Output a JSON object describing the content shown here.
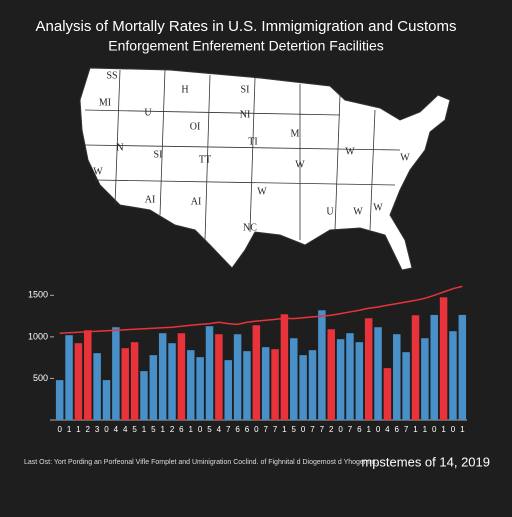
{
  "chart_data": {
    "type": "bar",
    "title": "Analysis of Mortally Rates in U.S. Immigmigration and Customs",
    "subtitle": "Enforgement Enferement Detertion Facilities",
    "map_labels": [
      "SS",
      "H",
      "SI",
      "MI",
      "U",
      "OI",
      "NI",
      "N",
      "SI",
      "TT",
      "TI",
      "W",
      "AI",
      "AI",
      "W",
      "NC",
      "M",
      "W",
      "W",
      "U",
      "W",
      "W",
      "W"
    ],
    "categories": [
      "0",
      "1",
      "1",
      "2",
      "3",
      "0",
      "4",
      "4",
      "5",
      "1",
      "5",
      "1",
      "2",
      "6",
      "1",
      "0",
      "5",
      "4",
      "7",
      "6",
      "6",
      "0",
      "7",
      "7",
      "1",
      "5",
      "0",
      "7",
      "7",
      "2",
      "0",
      "7",
      "6",
      "1",
      "0",
      "4",
      "6",
      "7",
      "1",
      "1",
      "0",
      "1",
      "0",
      "1"
    ],
    "values": [
      480,
      1020,
      924,
      1080,
      804,
      480,
      1116,
      864,
      936,
      588,
      780,
      1044,
      924,
      1044,
      840,
      756,
      1128,
      1032,
      720,
      1032,
      828,
      1140,
      876,
      852,
      1272,
      984,
      780,
      840,
      1320,
      1092,
      972,
      1044,
      936,
      1224,
      1116,
      624,
      1032,
      816,
      1260,
      984,
      1264,
      1476,
      1068,
      1264
    ],
    "colors": [
      "#4a90c8",
      "#4a90c8",
      "#e8333a",
      "#e8333a",
      "#4a90c8",
      "#4a90c8",
      "#4a90c8",
      "#e8333a",
      "#e8333a",
      "#4a90c8",
      "#4a90c8",
      "#4a90c8",
      "#4a90c8",
      "#e8333a",
      "#4a90c8",
      "#4a90c8",
      "#4a90c8",
      "#e8333a",
      "#4a90c8",
      "#4a90c8",
      "#4a90c8",
      "#e8333a",
      "#4a90c8",
      "#e8333a",
      "#e8333a",
      "#4a90c8",
      "#4a90c8",
      "#4a90c8",
      "#4a90c8",
      "#e8333a",
      "#4a90c8",
      "#4a90c8",
      "#4a90c8",
      "#e8333a",
      "#4a90c8",
      "#e8333a",
      "#4a90c8",
      "#4a90c8",
      "#e8333a",
      "#4a90c8",
      "#4a90c8",
      "#e8333a",
      "#4a90c8",
      "#4a90c8"
    ],
    "line": {
      "color": "#e8333a",
      "values": [
        1044,
        1050,
        1056,
        1062,
        1068,
        1074,
        1080,
        1086,
        1092,
        1098,
        1104,
        1110,
        1116,
        1128,
        1140,
        1150,
        1160,
        1176,
        1160,
        1150,
        1176,
        1190,
        1200,
        1210,
        1224,
        1220,
        1230,
        1240,
        1250,
        1260,
        1280,
        1300,
        1320,
        1344,
        1360,
        1380,
        1400,
        1420,
        1440,
        1464,
        1500,
        1540,
        1580,
        1608
      ]
    },
    "ylim": [
      0,
      1600
    ],
    "yticks": [
      500,
      1000,
      1500
    ],
    "footnote": "Last Ost: Yort Pording an Porfeonal Vifle Fomplet and Uminigration Coclind. of Fighnital d Diogemost d Yhogemnt.",
    "source": "mpstemes of 14, 2019"
  }
}
